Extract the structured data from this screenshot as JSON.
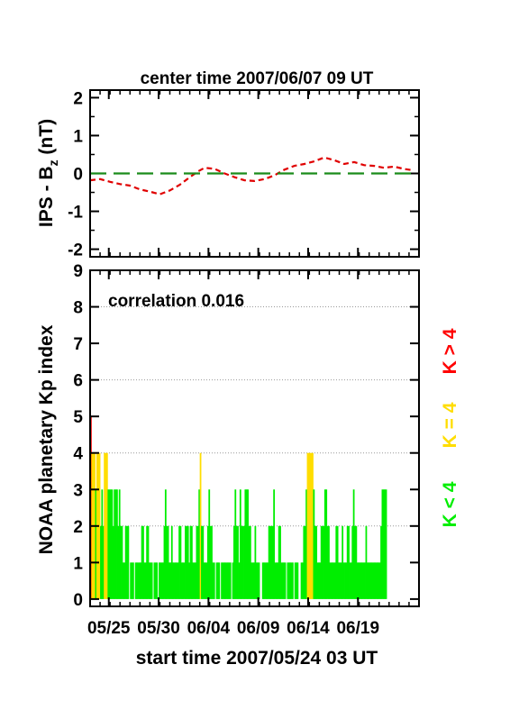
{
  "chart_data": [
    {
      "type": "line",
      "title": "center time 2007/06/07 09 UT",
      "ylabel_main": "IPS - B",
      "ylabel_sub": "z",
      "ylabel_unit": " (nT)",
      "ylim": [
        -2.2,
        2.2
      ],
      "yticks": [
        2,
        1,
        0,
        -1,
        -2
      ],
      "x_unit": "days after start time",
      "xlim": [
        0,
        33
      ],
      "series": [
        {
          "color": "#e00000",
          "style": "dashed",
          "x": [
            0,
            1,
            2,
            3,
            4,
            5,
            6,
            7,
            8,
            9,
            10,
            10.8,
            11.5,
            12.5,
            13.5,
            14.5,
            15.5,
            16.5,
            17.5,
            18.5,
            19.5,
            20.5,
            21.5,
            22.5,
            23.5,
            24.5,
            25.5,
            26.5,
            27.5,
            28.5,
            29.5,
            30.5,
            31.5,
            32.5
          ],
          "values": [
            -0.18,
            -0.15,
            -0.22,
            -0.28,
            -0.32,
            -0.42,
            -0.48,
            -0.55,
            -0.45,
            -0.3,
            -0.1,
            0.05,
            0.15,
            0.12,
            0.0,
            -0.1,
            -0.18,
            -0.2,
            -0.15,
            -0.05,
            0.1,
            0.2,
            0.25,
            0.32,
            0.42,
            0.35,
            0.25,
            0.3,
            0.22,
            0.2,
            0.15,
            0.18,
            0.12,
            0.08
          ]
        },
        {
          "color": "#1a8c1a",
          "style": "long-dash",
          "x": [
            0,
            33
          ],
          "values": [
            0,
            0
          ]
        }
      ]
    },
    {
      "type": "bar",
      "annotation": "correlation 0.016",
      "ylabel": "NOAA planetary Kp index",
      "ylim": [
        -0.2,
        9
      ],
      "yticks": [
        9,
        8,
        7,
        6,
        5,
        4,
        3,
        2,
        1,
        0
      ],
      "xlabel": "start time 2007/05/24 03 UT",
      "x_unit": "days after start time",
      "xlim": [
        0,
        33
      ],
      "xtick_days": [
        1.875,
        6.875,
        11.875,
        16.875,
        21.875,
        26.875
      ],
      "xtick_labels": [
        "05/25",
        "05/30",
        "06/04",
        "06/09",
        "06/14",
        "06/19"
      ],
      "grid": true,
      "legend": [
        {
          "label": "K > 4",
          "color": "#ff0000"
        },
        {
          "label": "K = 4",
          "color": "#ffdd00"
        },
        {
          "label": "K < 4",
          "color": "#00ee00"
        }
      ],
      "colors": {
        "low": "#00ee00",
        "equal": "#ffdd00",
        "high": "#ff0000"
      },
      "bin_hours": 3,
      "kp_values": [
        5,
        4,
        4,
        4,
        3,
        4,
        4,
        4,
        2,
        3,
        2,
        4,
        4,
        4,
        3,
        3,
        3,
        3,
        2,
        3,
        3,
        3,
        2,
        3,
        2,
        2,
        1,
        1,
        2,
        2,
        2,
        0,
        1,
        1,
        1,
        0,
        1,
        1,
        1,
        1,
        1,
        2,
        2,
        1,
        1,
        2,
        2,
        1,
        1,
        1,
        0,
        1,
        1,
        1,
        0,
        1,
        1,
        1,
        1,
        2,
        3,
        2,
        2,
        1,
        1,
        2,
        1,
        1,
        1,
        1,
        1,
        2,
        2,
        1,
        1,
        1,
        2,
        2,
        2,
        1,
        2,
        2,
        1,
        1,
        1,
        2,
        2,
        3,
        4,
        2,
        2,
        1,
        1,
        1,
        2,
        3,
        2,
        2,
        1,
        1,
        0,
        1,
        1,
        1,
        0,
        1,
        1,
        1,
        1,
        1,
        1,
        1,
        1,
        0,
        1,
        2,
        3,
        2,
        2,
        1,
        3,
        2,
        2,
        2,
        3,
        3,
        3,
        2,
        2,
        1,
        1,
        1,
        2,
        1,
        1,
        1,
        0,
        0,
        1,
        1,
        1,
        1,
        1,
        2,
        2,
        2,
        2,
        3,
        1,
        1,
        1,
        2,
        2,
        1,
        1,
        1,
        1,
        0,
        1,
        1,
        1,
        1,
        1,
        0,
        1,
        1,
        1,
        0,
        0,
        1,
        1,
        2,
        2,
        3,
        4,
        4,
        4,
        4,
        4,
        3,
        2,
        2,
        1,
        1,
        1,
        2,
        2,
        2,
        3,
        3,
        2,
        2,
        1,
        1,
        1,
        1,
        1,
        2,
        2,
        1,
        1,
        1,
        2,
        1,
        1,
        1,
        2,
        2,
        1,
        1,
        2,
        3,
        2,
        2,
        1,
        1,
        1,
        1,
        1,
        1,
        1,
        2,
        1,
        1,
        1,
        1,
        1,
        1,
        1,
        1,
        1,
        1,
        1,
        2,
        3,
        3,
        3,
        3
      ]
    }
  ]
}
